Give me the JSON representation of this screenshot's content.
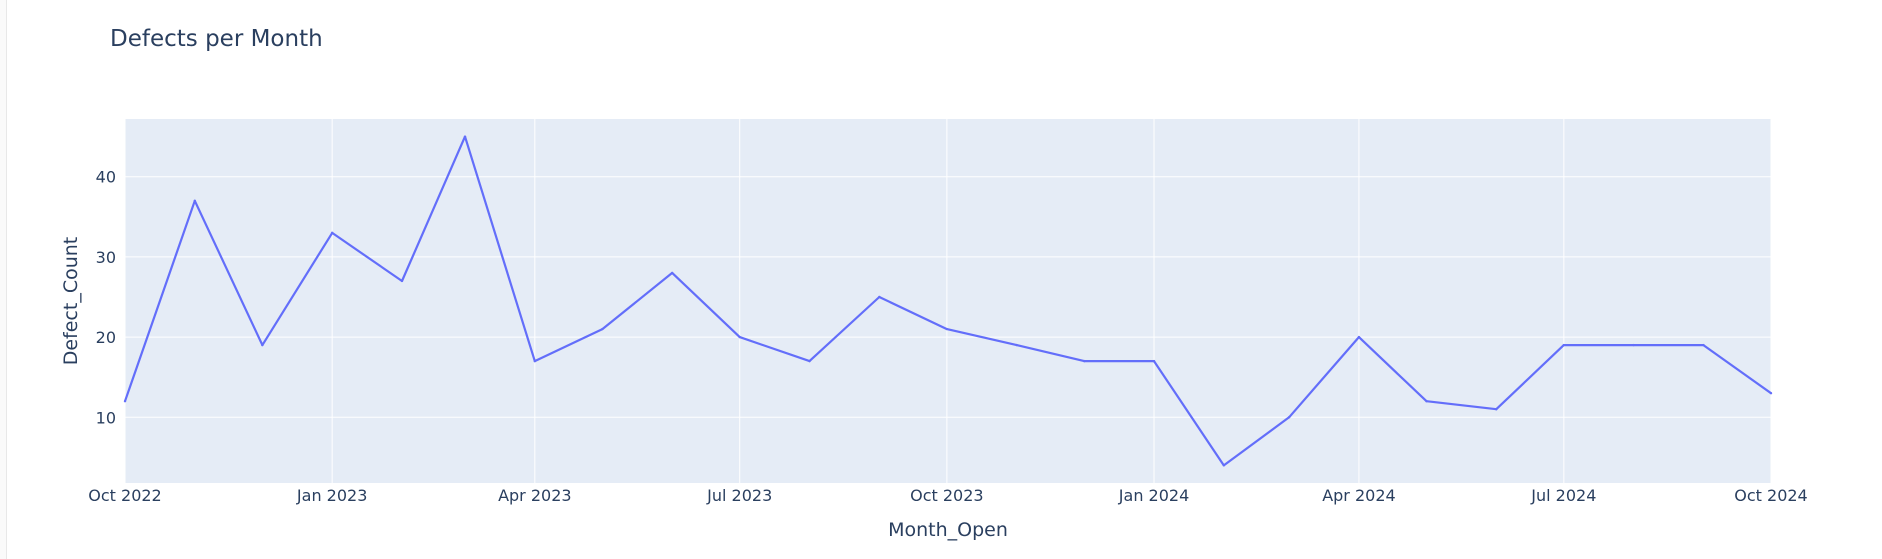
{
  "chart_data": {
    "type": "line",
    "title": "Defects per Month",
    "xlabel": "Month_Open",
    "ylabel": "Defect_Count",
    "x": [
      "2022-10-01",
      "2022-11-01",
      "2022-12-01",
      "2023-01-01",
      "2023-02-01",
      "2023-03-01",
      "2023-04-01",
      "2023-05-01",
      "2023-06-01",
      "2023-07-01",
      "2023-08-01",
      "2023-09-01",
      "2023-10-01",
      "2023-11-01",
      "2023-12-01",
      "2024-01-01",
      "2024-02-01",
      "2024-03-01",
      "2024-04-01",
      "2024-05-01",
      "2024-06-01",
      "2024-07-01",
      "2024-08-01",
      "2024-09-01",
      "2024-10-01"
    ],
    "series": [
      {
        "values": [
          12,
          37,
          19,
          33,
          27,
          45,
          17,
          21,
          28,
          20,
          17,
          25,
          21,
          19,
          17,
          17,
          4,
          10,
          20,
          12,
          11,
          19,
          19,
          19,
          13
        ]
      }
    ],
    "x_ticks": [
      "Oct 2022",
      "Jan 2023",
      "Apr 2023",
      "Jul 2023",
      "Oct 2023",
      "Jan 2024",
      "Apr 2024",
      "Jul 2024",
      "Oct 2024"
    ],
    "x_tick_dates": [
      "2022-10-01",
      "2023-01-01",
      "2023-04-01",
      "2023-07-01",
      "2023-10-01",
      "2024-01-01",
      "2024-04-01",
      "2024-07-01",
      "2024-10-01"
    ],
    "y_ticks": [
      10,
      20,
      30,
      40
    ],
    "xlim": [
      "2022-10-01",
      "2024-10-01"
    ],
    "ylim": [
      1.8,
      47.2
    ],
    "grid": true,
    "colors": {
      "line": "#636efa",
      "plot_bg": "#e5ecf6",
      "grid": "#ffffff",
      "text": "#2a3f5f"
    }
  }
}
